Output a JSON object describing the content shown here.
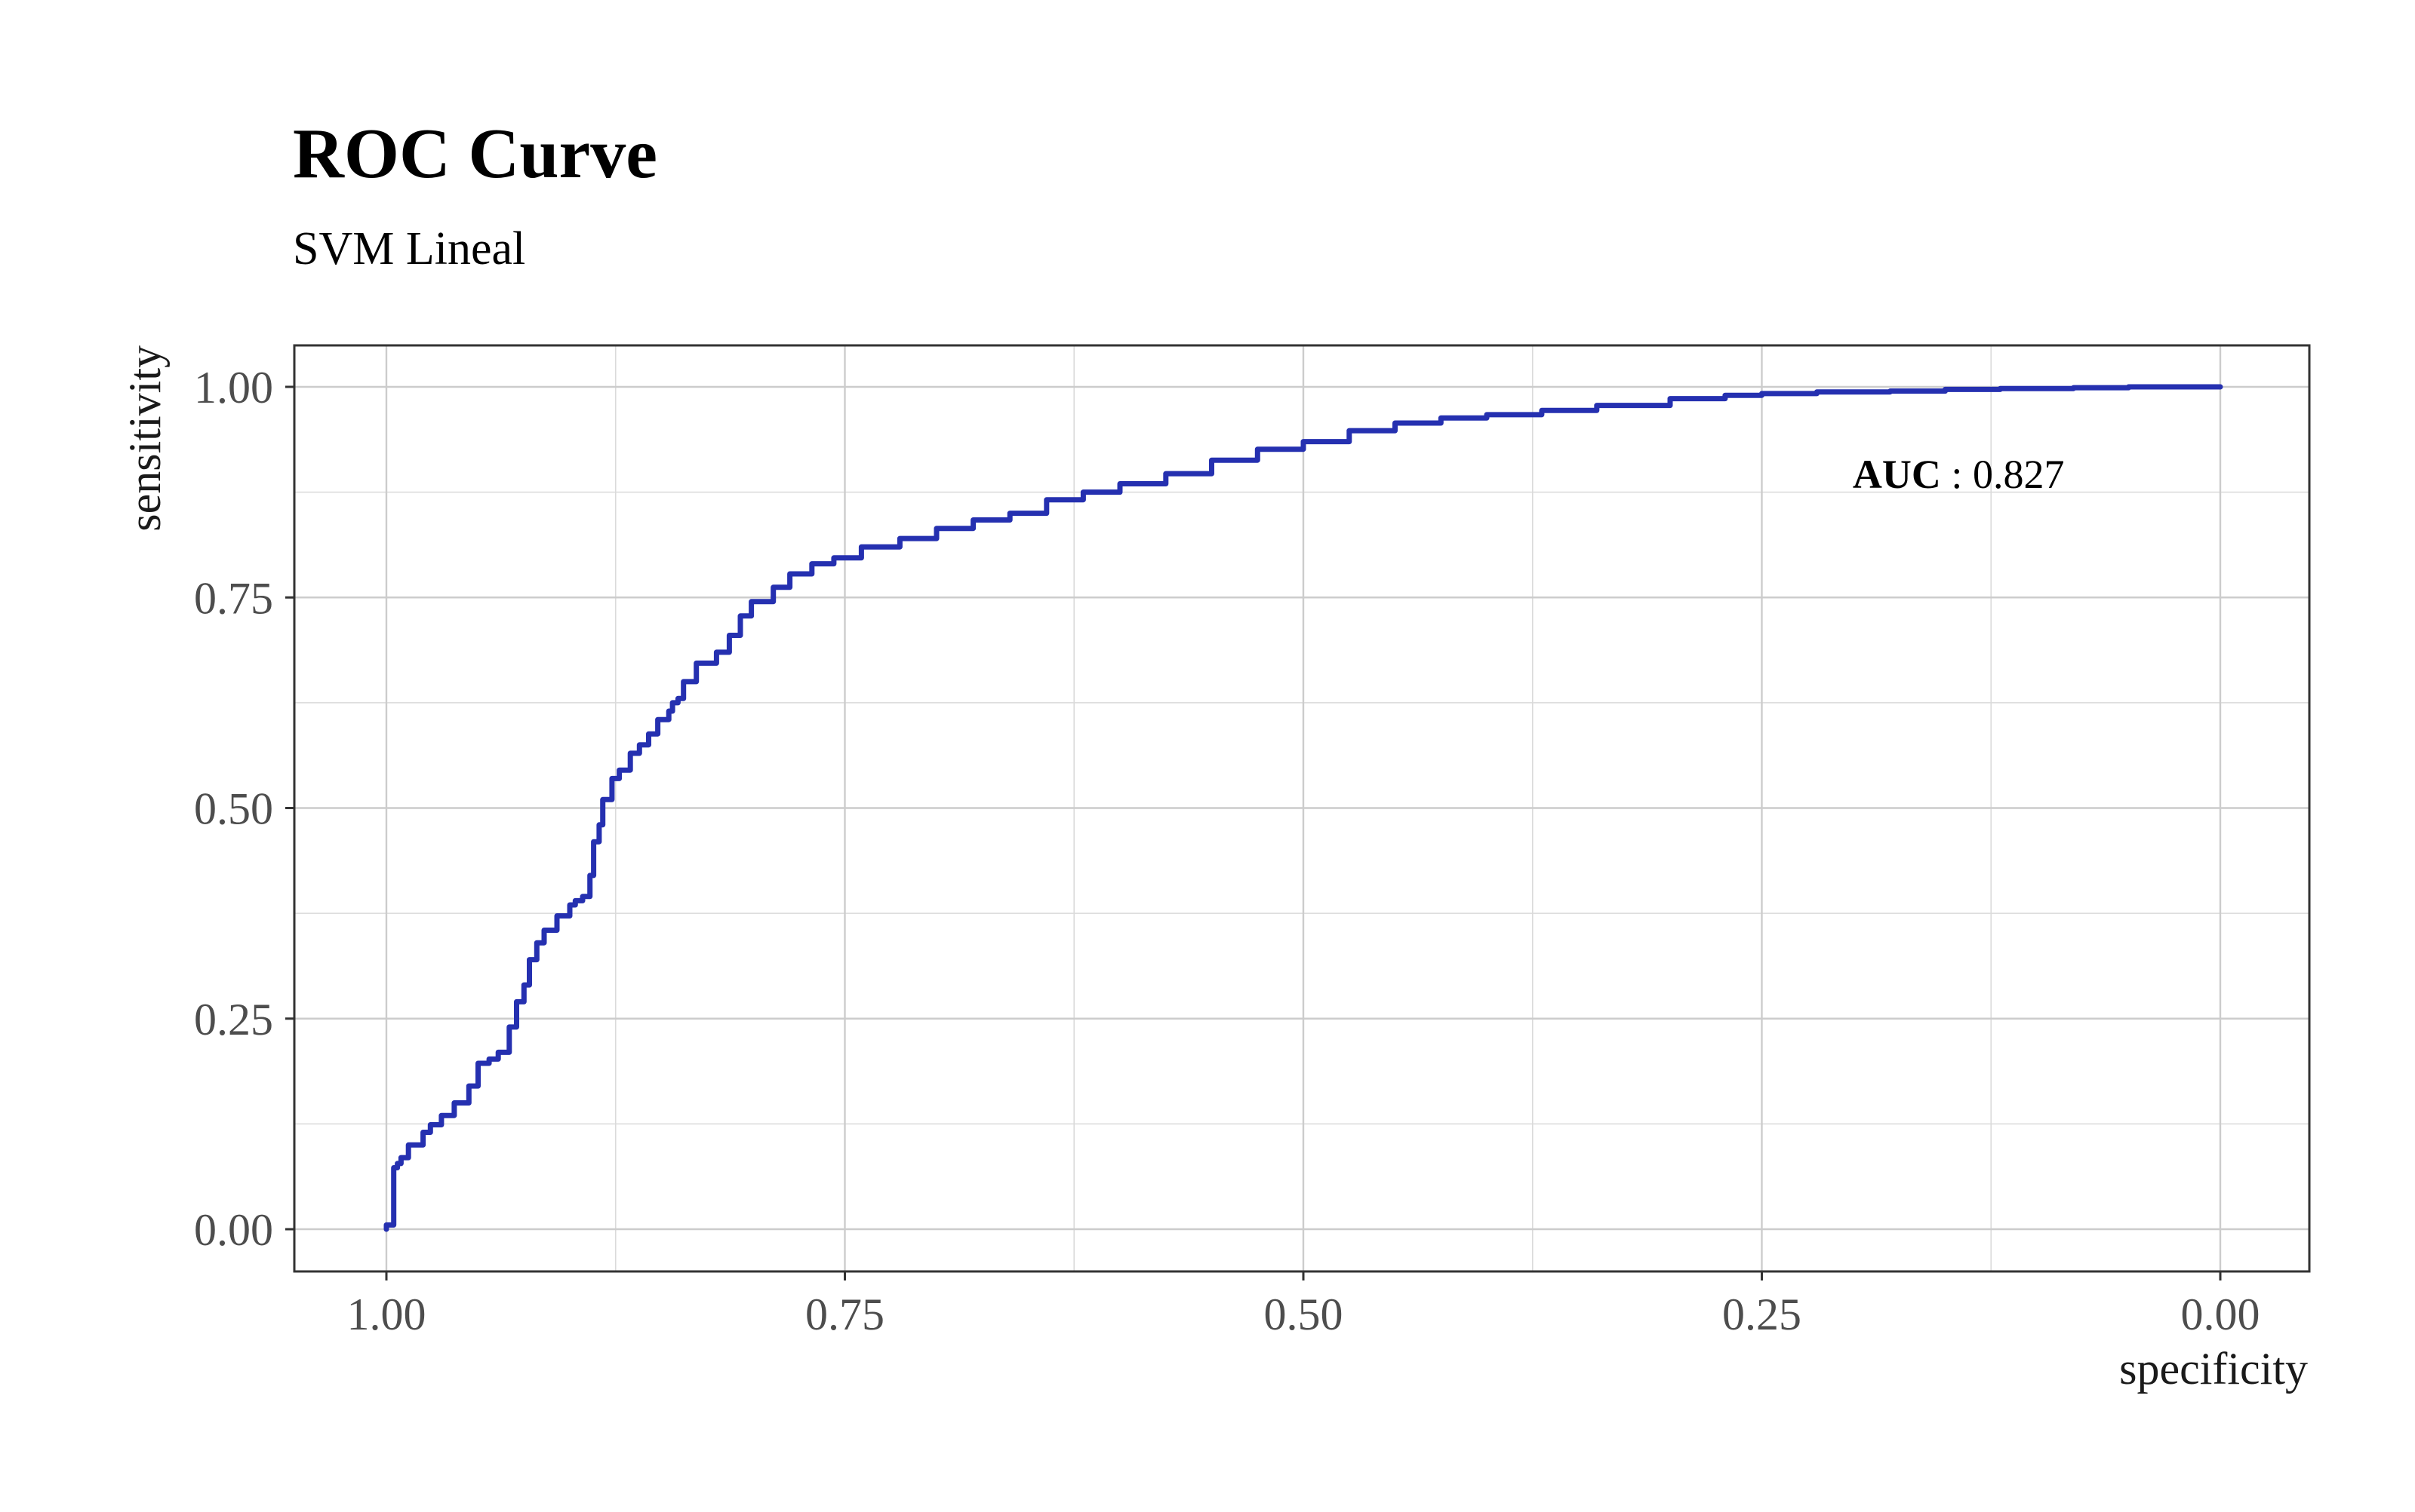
{
  "chart_data": {
    "type": "line",
    "title": "ROC Curve",
    "subtitle": "SVM Lineal",
    "xlabel": "specificity",
    "ylabel": "sensitivity",
    "x_reversed": true,
    "xlim": [
      1.0,
      0.0
    ],
    "ylim": [
      0.0,
      1.0
    ],
    "x_ticks": [
      1.0,
      0.75,
      0.5,
      0.25,
      0.0
    ],
    "x_tick_labels": [
      "1.00",
      "0.75",
      "0.50",
      "0.25",
      "0.00"
    ],
    "y_ticks": [
      0.0,
      0.25,
      0.5,
      0.75,
      1.0
    ],
    "y_tick_labels": [
      "0.00",
      "0.25",
      "0.50",
      "0.75",
      "1.00"
    ],
    "grid": true,
    "series": [
      {
        "color": "#2530b0",
        "x": [
          1.0,
          0.996,
          0.996,
          0.994,
          0.992,
          0.988,
          0.98,
          0.976,
          0.97,
          0.963,
          0.955,
          0.95,
          0.944,
          0.939,
          0.933,
          0.929,
          0.925,
          0.922,
          0.918,
          0.914,
          0.907,
          0.9,
          0.897,
          0.893,
          0.889,
          0.887,
          0.884,
          0.882,
          0.877,
          0.873,
          0.867,
          0.862,
          0.857,
          0.852,
          0.846,
          0.844,
          0.841,
          0.838,
          0.831,
          0.82,
          0.813,
          0.807,
          0.801,
          0.789,
          0.78,
          0.768,
          0.756,
          0.741,
          0.72,
          0.7,
          0.68,
          0.66,
          0.64,
          0.62,
          0.6,
          0.575,
          0.55,
          0.525,
          0.5,
          0.475,
          0.45,
          0.425,
          0.4,
          0.37,
          0.34,
          0.3,
          0.27,
          0.25,
          0.22,
          0.18,
          0.15,
          0.12,
          0.08,
          0.05,
          0.0
        ],
        "y": [
          0.0,
          0.005,
          0.055,
          0.073,
          0.078,
          0.085,
          0.1,
          0.115,
          0.124,
          0.135,
          0.15,
          0.17,
          0.197,
          0.202,
          0.21,
          0.24,
          0.27,
          0.29,
          0.32,
          0.34,
          0.355,
          0.372,
          0.385,
          0.39,
          0.395,
          0.42,
          0.46,
          0.48,
          0.51,
          0.535,
          0.545,
          0.565,
          0.575,
          0.588,
          0.605,
          0.615,
          0.625,
          0.63,
          0.65,
          0.672,
          0.685,
          0.705,
          0.728,
          0.745,
          0.762,
          0.778,
          0.79,
          0.797,
          0.81,
          0.82,
          0.832,
          0.842,
          0.85,
          0.866,
          0.875,
          0.885,
          0.897,
          0.913,
          0.926,
          0.935,
          0.948,
          0.957,
          0.963,
          0.967,
          0.972,
          0.978,
          0.986,
          0.99,
          0.992,
          0.994,
          0.995,
          0.997,
          0.998,
          0.999,
          1.0
        ]
      }
    ],
    "annotation": {
      "key": "AUC",
      "separator": " : ",
      "value": "0.827",
      "x": 0.085,
      "y": 0.88
    }
  }
}
